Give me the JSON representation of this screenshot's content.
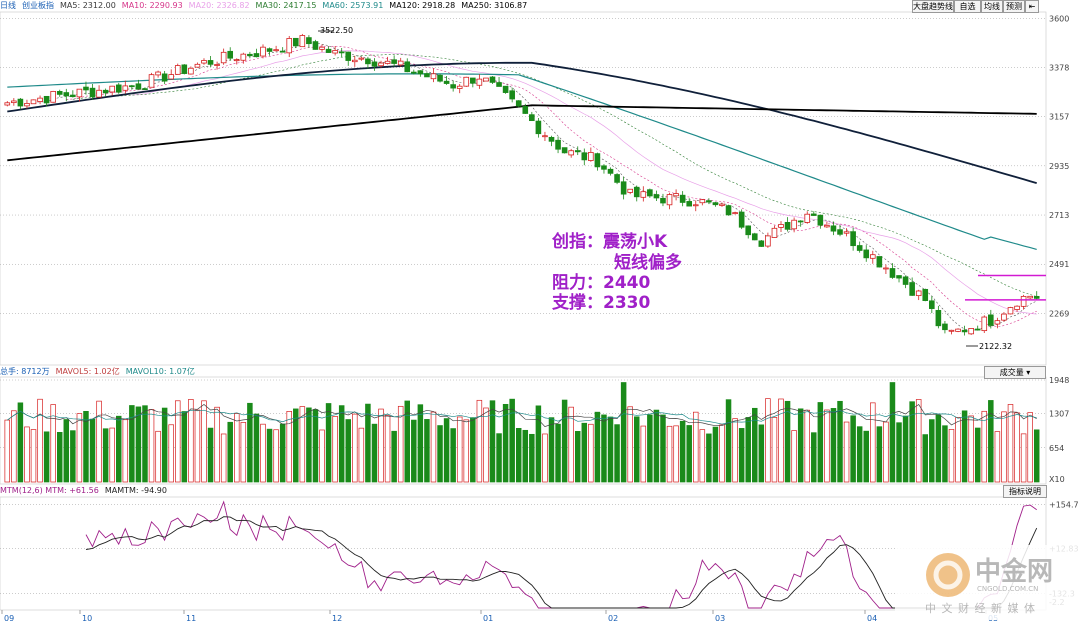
{
  "price_panel": {
    "name": "创业板指",
    "period": "日线",
    "ma": [
      {
        "label": "MA5: 2312.00",
        "color": "#3a3a3a"
      },
      {
        "label": "MA10: 2290.93",
        "color": "#d6368a"
      },
      {
        "label": "MA20: 2326.82",
        "color": "#e8a0e8"
      },
      {
        "label": "MA30: 2417.15",
        "color": "#2e7d32"
      },
      {
        "label": "MA60: 2573.91",
        "color": "#1f8a8a"
      },
      {
        "label": "MA120: 2918.28",
        "color": "#000000"
      },
      {
        "label": "MA250: 3106.87",
        "color": "#000000"
      }
    ],
    "buttons": [
      "大盘趋势线",
      "自选",
      "均线",
      "预测"
    ],
    "axis_ticks": [
      "3600",
      "3378",
      "3157",
      "2935",
      "2713",
      "2491",
      "2269"
    ],
    "high_label": "3522.50",
    "low_label": "2122.32"
  },
  "volume_panel": {
    "legend": [
      "总手: 8712万",
      "MAVOL5: 1.02亿",
      "MAVOL10: 1.07亿"
    ],
    "selector": "成交量",
    "axis_ticks": [
      "1948",
      "1307",
      "654"
    ],
    "unit": "X10"
  },
  "mtm_panel": {
    "legend": [
      "MTM(12,6) MTM: +61.56",
      "MAMTM: -94.90"
    ],
    "button": "指标说明",
    "axis_ticks": [
      "154.7",
      "12.83",
      "132.3",
      "2.2"
    ]
  },
  "time_axis": [
    "09",
    "10",
    "11",
    "12",
    "01",
    "02",
    "03",
    "04",
    "05"
  ],
  "annotation": {
    "line1": "创指：震荡小K",
    "line2": "短线偏多",
    "line3": "阻力：2440",
    "line4": "支撑：2330"
  },
  "watermark": {
    "brand": "中金网",
    "url": "CNGOLD.COM.CN",
    "slogan": "中 文 财 经 新 媒 体"
  },
  "chart_data": {
    "type": "candlestick",
    "title": "创业板指 日线",
    "ylim": [
      2050,
      3620
    ],
    "levels": {
      "resistance": 2440,
      "support": 2330
    },
    "high": 3522.5,
    "low": 2122.32,
    "ma_levels": {
      "MA5": 2312.0,
      "MA10": 2290.93,
      "MA20": 2326.82,
      "MA30": 2417.15,
      "MA60": 2573.91,
      "MA120": 2918.28,
      "MA250": 3106.87
    },
    "close_anchors": [
      [
        0,
        3220
      ],
      [
        10,
        3260
      ],
      [
        20,
        3300
      ],
      [
        30,
        3400
      ],
      [
        40,
        3460
      ],
      [
        45,
        3500
      ],
      [
        50,
        3440
      ],
      [
        55,
        3420
      ],
      [
        60,
        3380
      ],
      [
        68,
        3300
      ],
      [
        72,
        3340
      ],
      [
        78,
        3190
      ],
      [
        85,
        3000
      ],
      [
        90,
        2960
      ],
      [
        95,
        2800
      ],
      [
        105,
        2780
      ],
      [
        110,
        2730
      ],
      [
        115,
        2600
      ],
      [
        118,
        2650
      ],
      [
        122,
        2730
      ],
      [
        128,
        2620
      ],
      [
        134,
        2480
      ],
      [
        140,
        2330
      ],
      [
        143,
        2170
      ],
      [
        146,
        2200
      ],
      [
        150,
        2240
      ],
      [
        154,
        2330
      ],
      [
        156,
        2350
      ]
    ],
    "volume_ylim": [
      0,
      1948
    ],
    "mtm_ylim": [
      -180,
      170
    ],
    "mtm_last": 61.56,
    "mamtm_last": -94.9
  }
}
